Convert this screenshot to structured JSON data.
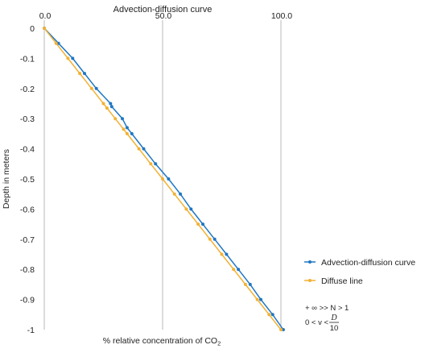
{
  "chart_data": {
    "type": "line",
    "title": "Advection-diffusion curve",
    "xlabel_main": "% relative concentration of CO",
    "xlabel_sub": "2",
    "ylabel": "Depth in meters",
    "xlim": [
      0,
      100
    ],
    "ylim": [
      -1,
      0
    ],
    "x_ticks": [
      "0.0",
      "50.0",
      "100.0"
    ],
    "x_tick_values": [
      0,
      50,
      100
    ],
    "y_ticks": [
      "0",
      "-0.1",
      "-0.2",
      "-0.3",
      "-0.4",
      "-0.5",
      "-0.6",
      "-0.7",
      "-0.8",
      "-0.9",
      "-1"
    ],
    "y_tick_values": [
      0,
      -0.1,
      -0.2,
      -0.3,
      -0.4,
      -0.5,
      -0.6,
      -0.7,
      -0.8,
      -0.9,
      -1
    ],
    "grid": "vertical",
    "legend_position": "right",
    "series": [
      {
        "name": "Advection-diffusion curve",
        "color": "#1f77c4",
        "points": [
          [
            0,
            0
          ],
          [
            6,
            -0.05
          ],
          [
            12,
            -0.1
          ],
          [
            17,
            -0.15
          ],
          [
            22,
            -0.2
          ],
          [
            28,
            -0.25
          ],
          [
            28.5,
            -0.26
          ],
          [
            33,
            -0.3
          ],
          [
            35,
            -0.33
          ],
          [
            37,
            -0.35
          ],
          [
            42,
            -0.4
          ],
          [
            47,
            -0.45
          ],
          [
            52.5,
            -0.5
          ],
          [
            57.5,
            -0.55
          ],
          [
            62,
            -0.6
          ],
          [
            67,
            -0.65
          ],
          [
            72,
            -0.7
          ],
          [
            77,
            -0.75
          ],
          [
            82,
            -0.8
          ],
          [
            87,
            -0.85
          ],
          [
            91.5,
            -0.9
          ],
          [
            96.5,
            -0.95
          ],
          [
            101,
            -1.0
          ]
        ]
      },
      {
        "name": "Diffuse line",
        "color": "#f2b134",
        "points": [
          [
            0,
            0
          ],
          [
            5,
            -0.05
          ],
          [
            10,
            -0.1
          ],
          [
            15,
            -0.15
          ],
          [
            20,
            -0.2
          ],
          [
            25,
            -0.25
          ],
          [
            26.5,
            -0.265
          ],
          [
            30,
            -0.3
          ],
          [
            33.5,
            -0.335
          ],
          [
            35,
            -0.35
          ],
          [
            40,
            -0.4
          ],
          [
            45,
            -0.45
          ],
          [
            50,
            -0.5
          ],
          [
            55,
            -0.55
          ],
          [
            60,
            -0.6
          ],
          [
            65,
            -0.65
          ],
          [
            70,
            -0.7
          ],
          [
            75,
            -0.75
          ],
          [
            80,
            -0.8
          ],
          [
            85,
            -0.85
          ],
          [
            90,
            -0.9
          ],
          [
            95,
            -0.95
          ],
          [
            100,
            -1.0
          ]
        ]
      }
    ],
    "notes": {
      "line1": "+ ∞ >> N > 1",
      "line2_prefix": "0 < v < ",
      "line2_numerator": "D",
      "line2_denominator": "10"
    }
  }
}
